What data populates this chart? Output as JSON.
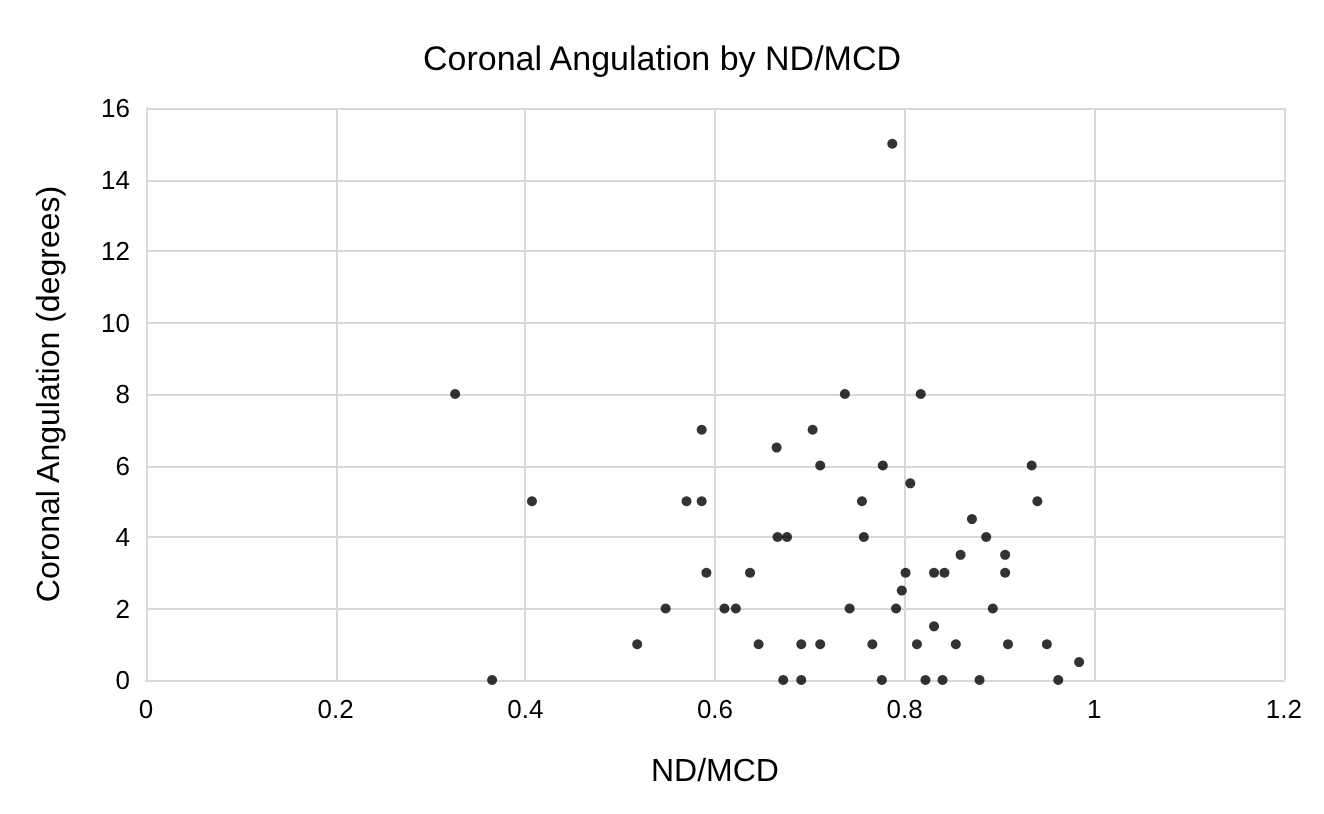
{
  "chart_data": {
    "type": "scatter",
    "title": "Coronal Angulation by ND/MCD",
    "xlabel": "ND/MCD",
    "ylabel": "Coronal Angulation (degrees)",
    "xlim": [
      0,
      1.2
    ],
    "xticks": [
      0,
      0.2,
      0.4,
      0.6,
      0.8,
      1,
      1.2
    ],
    "ylim": [
      0,
      16
    ],
    "yticks": [
      0,
      2,
      4,
      6,
      8,
      10,
      12,
      14,
      16
    ],
    "grid": true,
    "marker": "circle",
    "series": [
      {
        "color": "#000000",
        "x": [
          0.787,
          0.326,
          0.737,
          0.817,
          0.586,
          0.703,
          0.665,
          0.711,
          0.777,
          0.934,
          0.806,
          0.407,
          0.57,
          0.586,
          0.755,
          0.94,
          0.871,
          0.666,
          0.676,
          0.757,
          0.886,
          0.859,
          0.906,
          0.591,
          0.637,
          0.801,
          0.831,
          0.842,
          0.906,
          0.797,
          0.548,
          0.61,
          0.622,
          0.742,
          0.791,
          0.893,
          0.831,
          0.518,
          0.646,
          0.691,
          0.711,
          0.766,
          0.813,
          0.854,
          0.909,
          0.95,
          0.984,
          0.365,
          0.672,
          0.691,
          0.776,
          0.822,
          0.84,
          0.879,
          0.962
        ],
        "values": [
          15,
          8,
          8,
          8,
          7,
          7,
          6.5,
          6,
          6,
          6,
          5.5,
          5,
          5,
          5,
          5,
          5,
          4.5,
          4,
          4,
          4,
          4,
          3.5,
          3.5,
          3,
          3,
          3,
          3,
          3,
          3,
          2.5,
          2,
          2,
          2,
          2,
          2,
          2,
          1.5,
          1,
          1,
          1,
          1,
          1,
          1,
          1,
          1,
          1,
          0.5,
          0,
          0,
          0,
          0,
          0,
          0,
          0,
          0
        ]
      }
    ]
  }
}
